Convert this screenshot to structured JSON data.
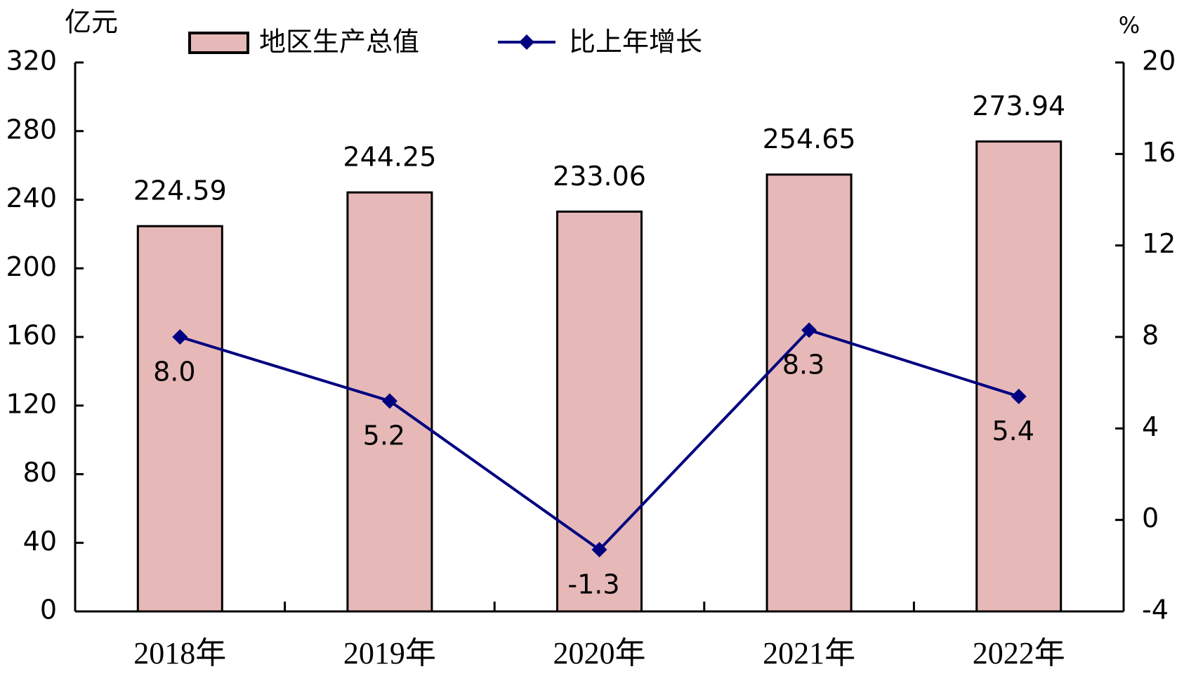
{
  "chart_data": {
    "type": "bar_line",
    "y_label": "亿元",
    "y2_label": "%",
    "categories": [
      "2018年",
      "2019年",
      "2020年",
      "2021年",
      "2022年"
    ],
    "series": [
      {
        "name": "地区生产总值",
        "type": "bar",
        "color": "#e6b8b7",
        "values": [
          224.59,
          244.25,
          233.06,
          254.65,
          273.94
        ]
      },
      {
        "name": "比上年增长",
        "type": "line",
        "axis": "y2",
        "color": "#000080",
        "values": [
          8.0,
          5.2,
          -1.3,
          8.3,
          5.4
        ],
        "value_labels": [
          "8.0",
          "5.2",
          "-1.3",
          "8.3",
          "5.4"
        ]
      }
    ],
    "ylim": [
      0,
      320
    ],
    "yticks": [
      0,
      40,
      80,
      120,
      160,
      200,
      240,
      280,
      320
    ],
    "y2lim": [
      -4,
      20
    ],
    "y2ticks": [
      -4,
      0,
      4,
      8,
      12,
      16,
      20
    ],
    "legend": "top"
  }
}
